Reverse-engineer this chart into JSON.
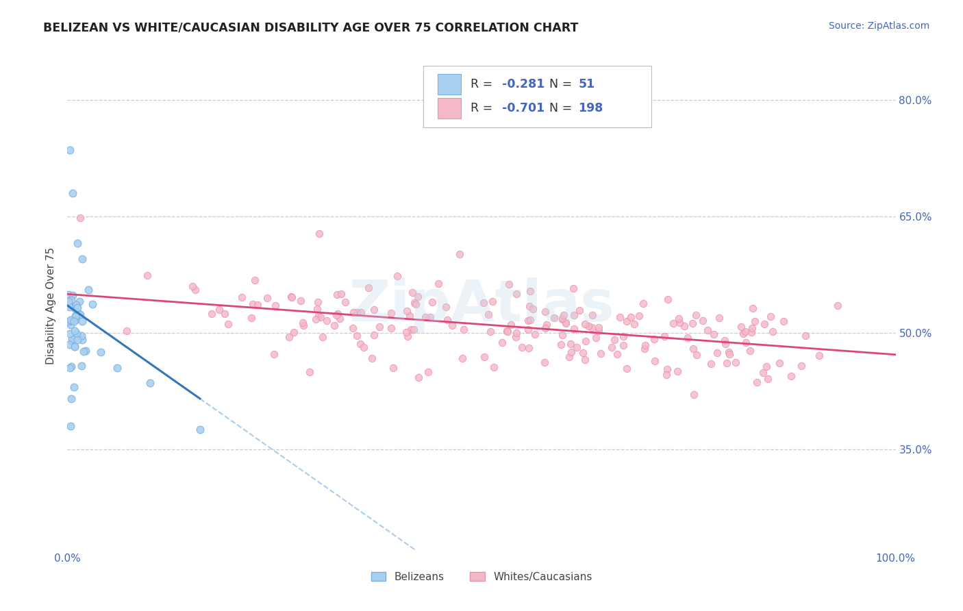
{
  "title": "BELIZEAN VS WHITE/CAUCASIAN DISABILITY AGE OVER 75 CORRELATION CHART",
  "source_text": "Source: ZipAtlas.com",
  "ylabel": "Disability Age Over 75",
  "x_min": 0.0,
  "x_max": 1.0,
  "y_min": 0.22,
  "y_max": 0.85,
  "y_ticks": [
    0.35,
    0.5,
    0.65,
    0.8
  ],
  "y_tick_labels": [
    "35.0%",
    "50.0%",
    "65.0%",
    "80.0%"
  ],
  "x_tick_labels": [
    "0.0%",
    "100.0%"
  ],
  "belizean_fill": "#a8d0f0",
  "belizean_edge": "#7ab0e0",
  "white_fill": "#f5b8c8",
  "white_edge": "#e890a8",
  "trend_belizean_color": "#3377bb",
  "trend_white_color": "#dd4477",
  "trend_dashed_color": "#aaccee",
  "legend_R1": "-0.281",
  "legend_N1": "51",
  "legend_R2": "-0.701",
  "legend_N2": "198",
  "legend_label1": "Belizeans",
  "legend_label2": "Whites/Caucasians",
  "watermark": "ZipAtlas",
  "background_color": "#ffffff",
  "grid_color": "#cccccc",
  "title_color": "#222222",
  "source_color": "#4466bb",
  "tick_color": "#4466bb",
  "label_color": "#444444"
}
